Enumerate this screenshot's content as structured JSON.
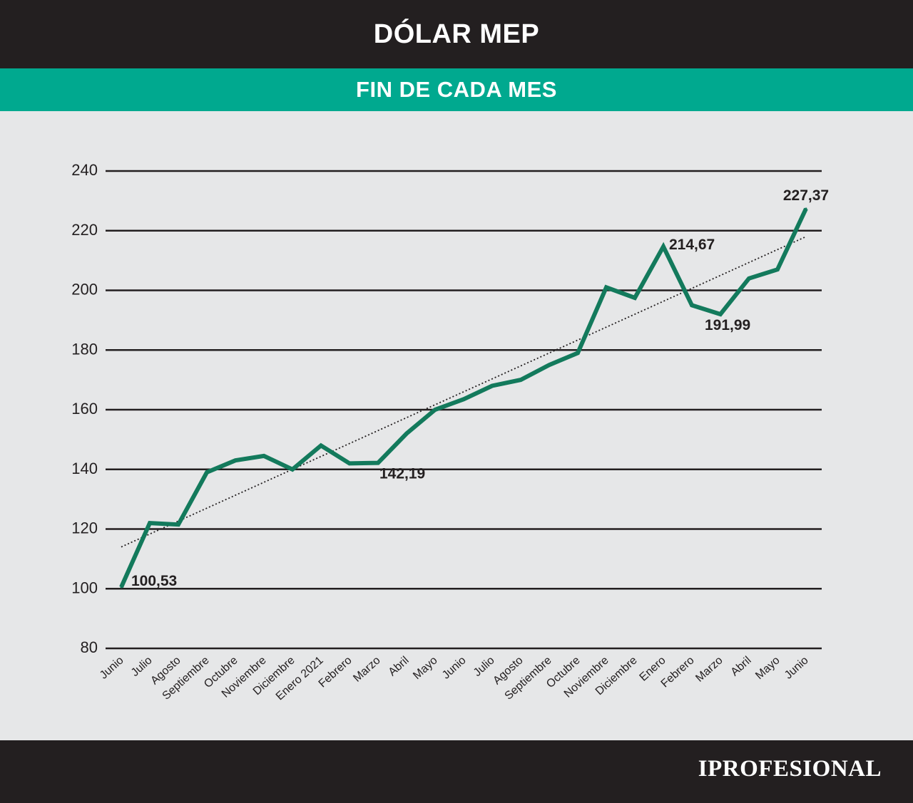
{
  "header": {
    "title": "DÓLAR MEP"
  },
  "subheader": {
    "title": "FIN DE CADA MES"
  },
  "footer": {
    "brand": "IPROFESIONAL"
  },
  "colors": {
    "header_bg": "#231f20",
    "accent": "#00a98f",
    "line": "#137a5c",
    "background": "#e6e7e8"
  },
  "chart_data": {
    "type": "line",
    "title": "DÓLAR MEP",
    "subtitle": "FIN DE CADA MES",
    "categories": [
      "Junio",
      "Julio",
      "Agosto",
      "Septiembre",
      "Octubre",
      "Noviembre",
      "Diciembre",
      "Enero 2021",
      "Febrero",
      "Marzo",
      "Abril",
      "Mayo",
      "Junio",
      "Julio",
      "Agosto",
      "Septiembre",
      "Octubre",
      "Noviembre",
      "Diciembre",
      "Enero",
      "Febrero",
      "Marzo",
      "Abril",
      "Mayo",
      "Junio"
    ],
    "series": [
      {
        "values": [
          100.53,
          122,
          121.5,
          139,
          143,
          144.5,
          140,
          148,
          142,
          142.19,
          152,
          160,
          163.5,
          168,
          170,
          175,
          179,
          201,
          197.5,
          214.67,
          195,
          191.99,
          204,
          207,
          227.37
        ]
      }
    ],
    "trendline": {
      "style": "dotted",
      "start": 114,
      "end": 218
    },
    "data_labels": [
      {
        "index": 0,
        "text": "100,53"
      },
      {
        "index": 9,
        "text": "142,19"
      },
      {
        "index": 19,
        "text": "214,67"
      },
      {
        "index": 21,
        "text": "191,99"
      },
      {
        "index": 24,
        "text": "227,37"
      }
    ],
    "ylim": [
      80,
      240
    ],
    "yticks": [
      "80",
      "100",
      "120",
      "140",
      "160",
      "180",
      "200",
      "220",
      "240"
    ],
    "grid": true,
    "xlabel": "",
    "ylabel": ""
  }
}
